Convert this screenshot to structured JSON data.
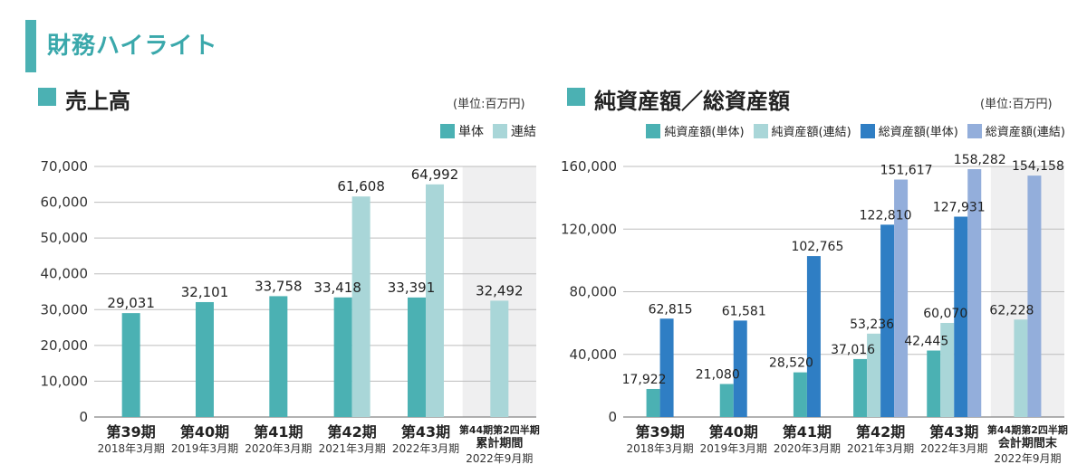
{
  "header": {
    "title": "財務ハイライト"
  },
  "colors": {
    "teal": "#4bb1b3",
    "light_teal": "#a9d6d8",
    "blue": "#2f7ec4",
    "light_blue": "#93aedb",
    "shade": "#efeff0",
    "grid": "#bdbdbd"
  },
  "chart_data": [
    {
      "type": "bar",
      "title": "売上高",
      "unit": "(単位:百万円)",
      "ylim": [
        0,
        70000
      ],
      "yticks": [
        "0",
        "10,000",
        "20,000",
        "30,000",
        "40,000",
        "50,000",
        "60,000",
        "70,000"
      ],
      "categories": [
        "第39期",
        "第40期",
        "第41期",
        "第42期",
        "第43期",
        "第44期第2四半期累計期間"
      ],
      "category_labels": [
        {
          "line1": "第39期",
          "line2": "2018年3月期"
        },
        {
          "line1": "第40期",
          "line2": "2019年3月期"
        },
        {
          "line1": "第41期",
          "line2": "2020年3月期"
        },
        {
          "line1": "第42期",
          "line2": "2021年3月期"
        },
        {
          "line1": "第43期",
          "line2": "2022年3月期"
        },
        {
          "line1": "第44期第2四半期",
          "line1b": "累計期間",
          "line2": "2022年9月期"
        }
      ],
      "series": [
        {
          "name": "単体",
          "color": "#4bb1b3",
          "values": [
            29031,
            32101,
            33758,
            33418,
            33391,
            null
          ],
          "labels": [
            "29,031",
            "32,101",
            "33,758",
            "33,418",
            "33,391",
            ""
          ]
        },
        {
          "name": "連結",
          "color": "#a9d6d8",
          "values": [
            null,
            null,
            null,
            61608,
            64992,
            32492
          ],
          "labels": [
            "",
            "",
            "",
            "61,608",
            "64,992",
            "32,492"
          ]
        }
      ],
      "grid": true,
      "highlight_last_category": true
    },
    {
      "type": "bar",
      "title": "純資産額／総資産額",
      "unit": "(単位:百万円)",
      "ylim": [
        0,
        160000
      ],
      "yticks": [
        "0",
        "40,000",
        "80,000",
        "120,000",
        "160,000"
      ],
      "categories": [
        "第39期",
        "第40期",
        "第41期",
        "第42期",
        "第43期",
        "第44期第2四半期会計期間末"
      ],
      "category_labels": [
        {
          "line1": "第39期",
          "line2": "2018年3月期"
        },
        {
          "line1": "第40期",
          "line2": "2019年3月期"
        },
        {
          "line1": "第41期",
          "line2": "2020年3月期"
        },
        {
          "line1": "第42期",
          "line2": "2021年3月期"
        },
        {
          "line1": "第43期",
          "line2": "2022年3月期"
        },
        {
          "line1": "第44期第2四半期",
          "line1b": "会計期間末",
          "line2": "2022年9月期"
        }
      ],
      "series": [
        {
          "name": "純資産額(単体)",
          "color": "#4bb1b3",
          "values": [
            17922,
            21080,
            28520,
            37016,
            42445,
            null
          ],
          "labels": [
            "17,922",
            "21,080",
            "28,520",
            "37,016",
            "42,445",
            ""
          ]
        },
        {
          "name": "純資産額(連結)",
          "color": "#a9d6d8",
          "values": [
            null,
            null,
            null,
            53236,
            60070,
            62228
          ],
          "labels": [
            "",
            "",
            "",
            "53,236",
            "60,070",
            "62,228"
          ]
        },
        {
          "name": "総資産額(単体)",
          "color": "#2f7ec4",
          "values": [
            62815,
            61581,
            102765,
            122810,
            127931,
            null
          ],
          "labels": [
            "62,815",
            "61,581",
            "102,765",
            "122,810",
            "127,931",
            ""
          ]
        },
        {
          "name": "総資産額(連結)",
          "color": "#93aedb",
          "values": [
            null,
            null,
            null,
            151617,
            158282,
            154158
          ],
          "labels": [
            "",
            "",
            "",
            "151,617",
            "158,282",
            "154,158"
          ]
        }
      ],
      "grid": true,
      "highlight_last_category": true
    }
  ]
}
